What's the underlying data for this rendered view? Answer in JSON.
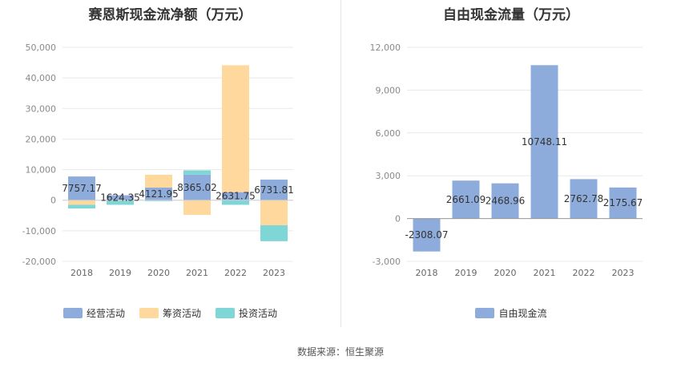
{
  "chart_data": [
    {
      "type": "bar",
      "stacked": true,
      "title": "赛恩斯现金流净额（万元）",
      "categories": [
        "2018",
        "2019",
        "2020",
        "2021",
        "2022",
        "2023"
      ],
      "ylim": [
        -20000,
        50000
      ],
      "yticks": [
        -20000,
        -10000,
        0,
        10000,
        20000,
        30000,
        40000,
        50000
      ],
      "ytick_labels": [
        "-20,000",
        "-10,000",
        "0",
        "10,000",
        "20,000",
        "30,000",
        "40,000",
        "50,000"
      ],
      "grid": true,
      "legend_position": "bottom",
      "series": [
        {
          "name": "经营活动",
          "color": "#8eacdb",
          "values": [
            7757.17,
            1624.35,
            4121.95,
            8365.02,
            2631.75,
            6731.81
          ]
        },
        {
          "name": "筹资活动",
          "color": "#fed89c",
          "values": [
            -1500,
            -200,
            4200,
            -4800,
            41500,
            -8200
          ]
        },
        {
          "name": "投资活动",
          "color": "#7fd6d6",
          "values": [
            -1200,
            -1300,
            -300,
            1400,
            -1500,
            -5200
          ]
        }
      ],
      "data_labels": [
        "7757.17",
        "1624.35",
        "4121.95",
        "8365.02",
        "2631.75",
        "6731.81"
      ]
    },
    {
      "type": "bar",
      "title": "自由现金流量（万元）",
      "categories": [
        "2018",
        "2019",
        "2020",
        "2021",
        "2022",
        "2023"
      ],
      "ylim": [
        -3000,
        12000
      ],
      "yticks": [
        -3000,
        0,
        3000,
        6000,
        9000,
        12000
      ],
      "ytick_labels": [
        "-3,000",
        "0",
        "3,000",
        "6,000",
        "9,000",
        "12,000"
      ],
      "grid": true,
      "legend_position": "bottom",
      "series": [
        {
          "name": "自由现金流",
          "color": "#8eacdb",
          "values": [
            -2308.07,
            2661.09,
            2468.96,
            10748.11,
            2762.78,
            2175.67
          ]
        }
      ],
      "data_labels": [
        "-2308.07",
        "2661.09",
        "2468.96",
        "10748.11",
        "2762.78",
        "2175.67"
      ]
    }
  ],
  "footer": {
    "source": "数据来源：恒生聚源"
  }
}
